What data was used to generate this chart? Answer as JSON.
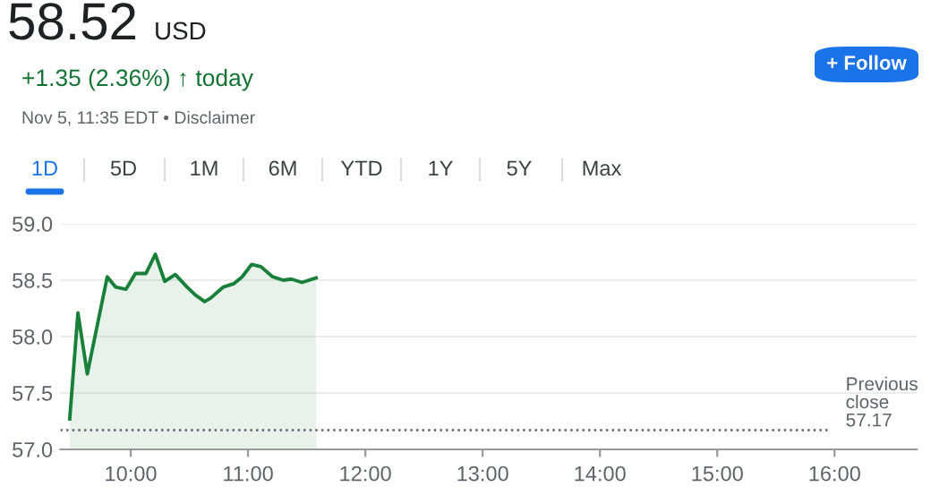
{
  "chart_data": {
    "type": "area",
    "annotations": [
      "58.52",
      "USD",
      "+1.35 (2.36%) ↑ today",
      "Nov 5, 11:35 EDT • Disclaimer",
      "1D",
      "5D",
      "1M",
      "6M",
      "YTD",
      "1Y",
      "5Y",
      "Max",
      "+ Follow"
    ],
    "x": [
      9.48,
      9.55,
      9.63,
      9.8,
      9.87,
      9.96,
      10.04,
      10.13,
      10.21,
      10.29,
      10.38,
      10.48,
      10.55,
      10.63,
      10.68,
      10.79,
      10.88,
      10.95,
      11.03,
      11.11,
      11.21,
      11.3,
      11.37,
      11.46,
      11.58
    ],
    "series": [
      {
        "color": "#188038",
        "values": [
          57.27,
          58.21,
          57.67,
          58.53,
          58.44,
          58.42,
          58.56,
          58.56,
          58.73,
          58.49,
          58.55,
          58.44,
          58.37,
          58.31,
          58.34,
          58.44,
          58.47,
          58.53,
          58.64,
          58.62,
          58.53,
          58.5,
          58.51,
          58.48,
          58.52
        ]
      }
    ],
    "xlim": [
      9.4,
      16.7
    ],
    "ylim": [
      57,
      59
    ],
    "xticks": [
      {
        "value": 10,
        "label": "10:00"
      },
      {
        "value": 11,
        "label": "11:00"
      },
      {
        "value": 12,
        "label": "12:00"
      },
      {
        "value": 13,
        "label": "13:00"
      },
      {
        "value": 14,
        "label": "14:00"
      },
      {
        "value": 15,
        "label": "15:00"
      },
      {
        "value": 16,
        "label": "16:00"
      }
    ],
    "yticks": [
      {
        "value": 57,
        "label": "57.0"
      },
      {
        "value": 57.5,
        "label": "57.5"
      },
      {
        "value": 58,
        "label": "58.0"
      },
      {
        "value": 58.5,
        "label": "58.5"
      },
      {
        "value": 59,
        "label": "59.0"
      }
    ],
    "ref_lines": [
      {
        "axis": "y",
        "value": 57.17,
        "label": "Previous\nclose\n57.17",
        "color": "#5f6368",
        "line_style": "dotted"
      }
    ],
    "grid": "y",
    "legend": false
  }
}
